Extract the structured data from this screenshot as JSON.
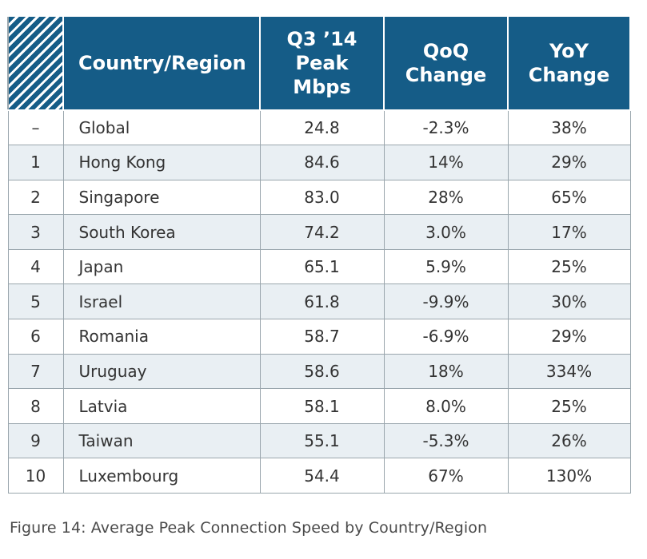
{
  "table": {
    "headers": {
      "country": "Country/Region",
      "peak_lines": [
        "Q3 ’14",
        "Peak",
        "Mbps"
      ],
      "qoq_lines": [
        "QoQ",
        "Change"
      ],
      "yoy_lines": [
        "YoY",
        "Change"
      ]
    },
    "rows": [
      {
        "rank": "–",
        "country": "Global",
        "peak": "24.8",
        "qoq": "-2.3%",
        "yoy": "38%"
      },
      {
        "rank": "1",
        "country": "Hong Kong",
        "peak": "84.6",
        "qoq": "14%",
        "yoy": "29%"
      },
      {
        "rank": "2",
        "country": "Singapore",
        "peak": "83.0",
        "qoq": "28%",
        "yoy": "65%"
      },
      {
        "rank": "3",
        "country": "South Korea",
        "peak": "74.2",
        "qoq": "3.0%",
        "yoy": "17%"
      },
      {
        "rank": "4",
        "country": "Japan",
        "peak": "65.1",
        "qoq": "5.9%",
        "yoy": "25%"
      },
      {
        "rank": "5",
        "country": "Israel",
        "peak": "61.8",
        "qoq": "-9.9%",
        "yoy": "30%"
      },
      {
        "rank": "6",
        "country": "Romania",
        "peak": "58.7",
        "qoq": "-6.9%",
        "yoy": "29%"
      },
      {
        "rank": "7",
        "country": "Uruguay",
        "peak": "58.6",
        "qoq": "18%",
        "yoy": "334%"
      },
      {
        "rank": "8",
        "country": "Latvia",
        "peak": "58.1",
        "qoq": "8.0%",
        "yoy": "25%"
      },
      {
        "rank": "9",
        "country": "Taiwan",
        "peak": "55.1",
        "qoq": "-5.3%",
        "yoy": "26%"
      },
      {
        "rank": "10",
        "country": "Luxembourg",
        "peak": "54.4",
        "qoq": "67%",
        "yoy": "130%"
      }
    ]
  },
  "caption": "Figure 14: Average Peak Connection Speed by Country/Region"
}
